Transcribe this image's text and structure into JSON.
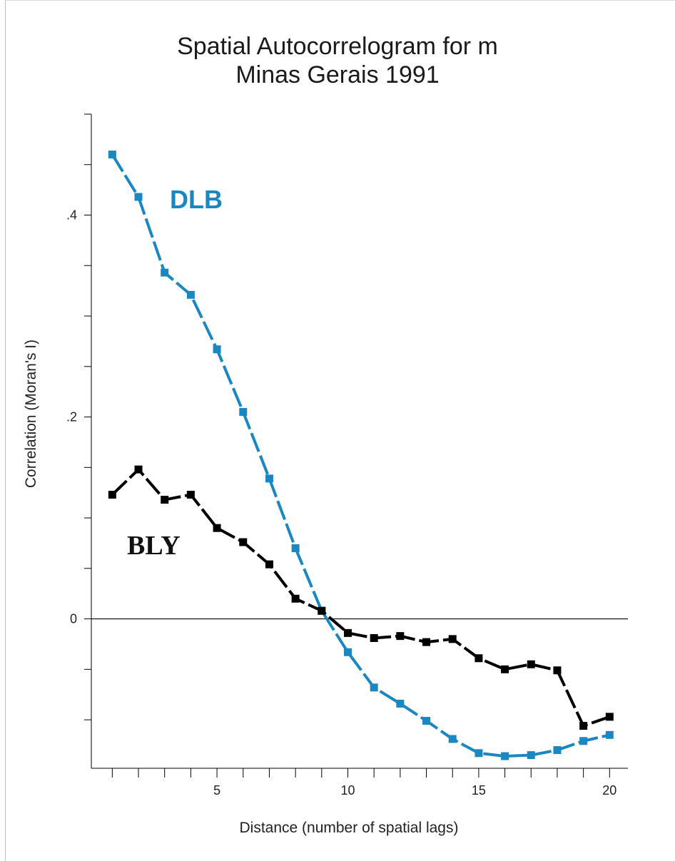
{
  "chart_data": {
    "type": "line",
    "title": "Spatial Autocorrelogram for m",
    "subtitle": "Minas Gerais 1991",
    "xlabel": "Distance (number of spatial lags)",
    "ylabel": "Correlation (Moran's I)",
    "xlim": [
      0.2,
      20.7
    ],
    "ylim": [
      -0.148,
      0.5
    ],
    "x_ticks": [
      1,
      2,
      3,
      4,
      5,
      6,
      7,
      8,
      9,
      10,
      11,
      12,
      13,
      14,
      15,
      16,
      17,
      18,
      19,
      20
    ],
    "x_tick_labels": [
      {
        "value": 5,
        "label": "5"
      },
      {
        "value": 10,
        "label": "10"
      },
      {
        "value": 15,
        "label": "15"
      },
      {
        "value": 20,
        "label": "20"
      }
    ],
    "y_ticks": [
      -0.1,
      -0.05,
      0,
      0.05,
      0.1,
      0.15,
      0.2,
      0.25,
      0.3,
      0.35,
      0.4,
      0.45,
      0.5
    ],
    "y_tick_labels": [
      {
        "value": 0,
        "label": "0"
      },
      {
        "value": 0.2,
        "label": ".2"
      },
      {
        "value": 0.4,
        "label": ".4"
      }
    ],
    "zero_line": true,
    "grid": false,
    "x": [
      1,
      2,
      3,
      4,
      5,
      6,
      7,
      8,
      9,
      10,
      11,
      12,
      13,
      14,
      15,
      16,
      17,
      18,
      19,
      20
    ],
    "series": [
      {
        "name": "DLB",
        "color": "#1b87c1",
        "label_color": "#1b87c1",
        "label_font": "sans",
        "values": [
          0.46,
          0.418,
          0.343,
          0.321,
          0.267,
          0.205,
          0.139,
          0.07,
          0.008,
          -0.033,
          -0.068,
          -0.084,
          -0.101,
          -0.119,
          -0.133,
          -0.136,
          -0.135,
          -0.13,
          -0.121,
          -0.115
        ]
      },
      {
        "name": "BLY",
        "color": "#000000",
        "label_color": "#111111",
        "label_font": "serif",
        "values": [
          0.123,
          0.148,
          0.118,
          0.123,
          0.09,
          0.076,
          0.054,
          0.02,
          0.008,
          -0.014,
          -0.019,
          -0.017,
          -0.023,
          -0.02,
          -0.039,
          -0.05,
          -0.045,
          -0.051,
          -0.106,
          -0.097
        ]
      }
    ]
  }
}
